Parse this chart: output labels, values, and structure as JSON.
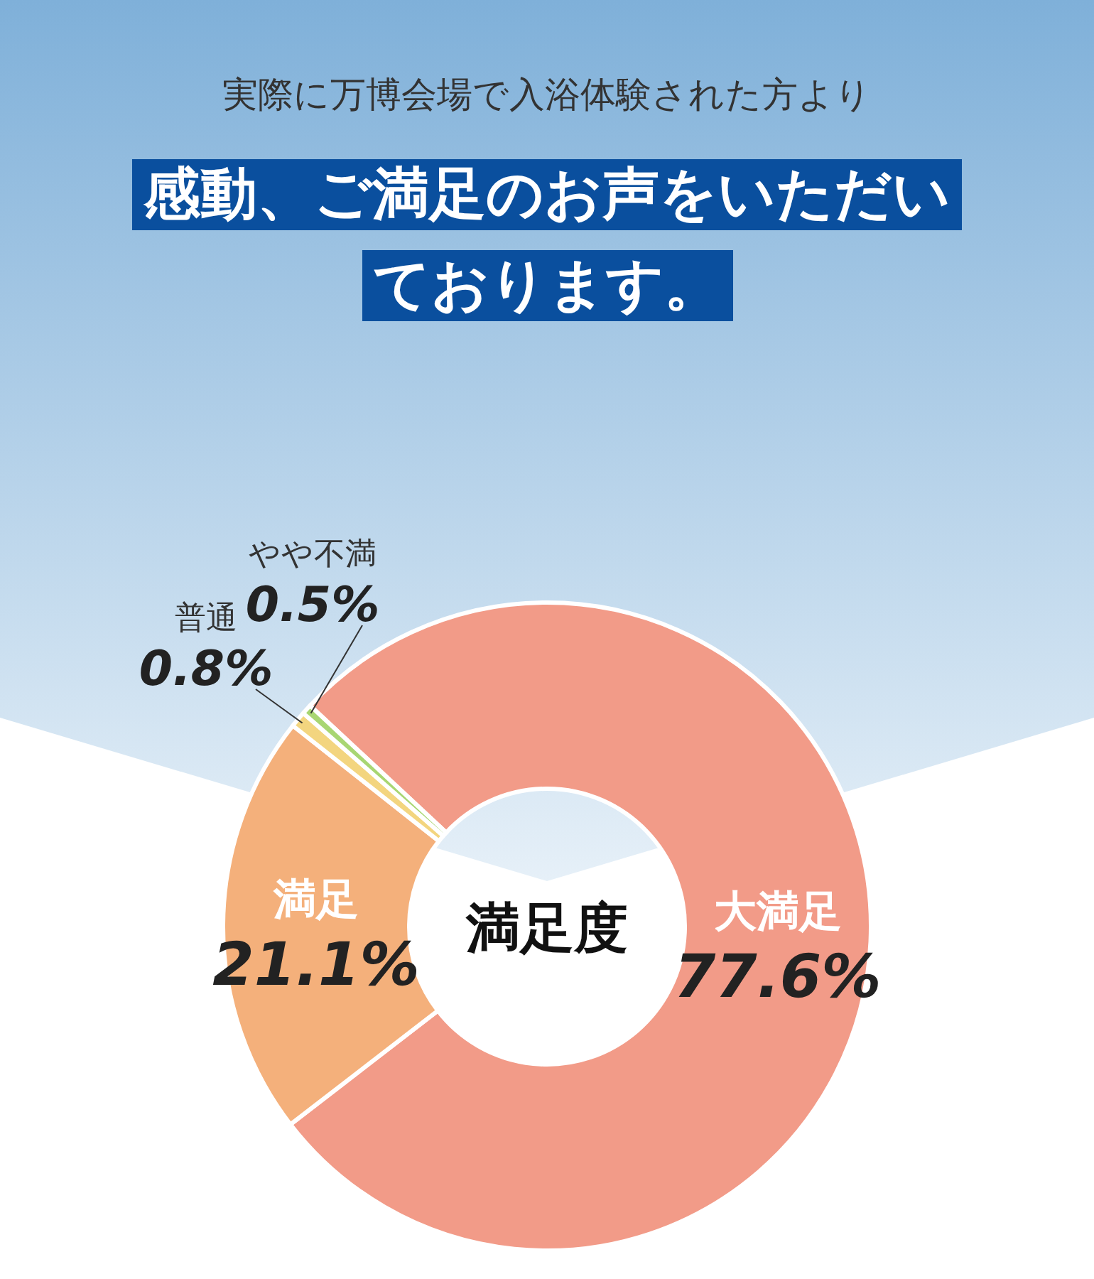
{
  "chart_data": {
    "type": "donut",
    "title": "実際に万博会場で入浴体験された方より",
    "subtitle": "感動、ご満足のお声をいただいております。",
    "categories": [
      "大満足",
      "満足",
      "普通",
      "やや不満"
    ],
    "values": [
      77.6,
      21.1,
      0.8,
      0.5
    ],
    "value_labels": [
      "77.6%",
      "21.1%",
      "0.8%",
      "0.5%"
    ],
    "colors": [
      "#f29b88",
      "#f4b07b",
      "#f3d57f",
      "#a8d672"
    ],
    "annotations": [
      "満足度"
    ]
  }
}
